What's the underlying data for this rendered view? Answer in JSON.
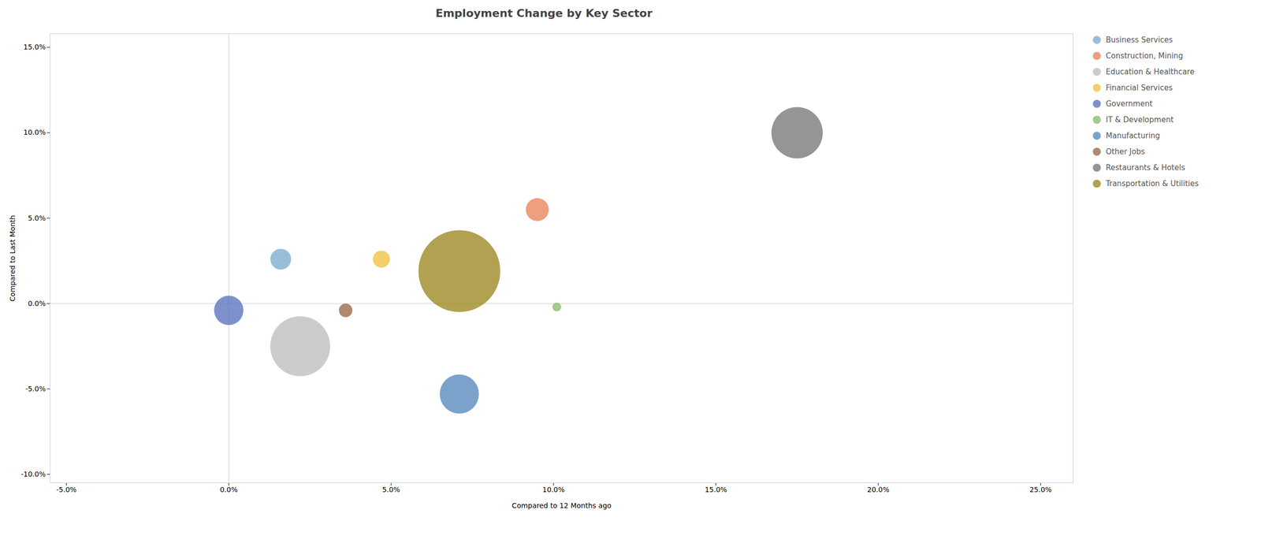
{
  "chart_data": {
    "type": "bubble",
    "title": "Employment Change by Key Sector",
    "xlabel": "Compared to 12 Months ago",
    "ylabel": "Compared to Last Month",
    "xlim": [
      -0.055,
      0.26
    ],
    "ylim": [
      -0.105,
      0.158
    ],
    "xticks": [
      {
        "value": -0.05,
        "label": "-5.0%"
      },
      {
        "value": 0.0,
        "label": "0.0%"
      },
      {
        "value": 0.05,
        "label": "5.0%"
      },
      {
        "value": 0.1,
        "label": "10.0%"
      },
      {
        "value": 0.15,
        "label": "15.0%"
      },
      {
        "value": 0.2,
        "label": "20.0%"
      },
      {
        "value": 0.25,
        "label": "25.0%"
      }
    ],
    "yticks": [
      {
        "value": -0.1,
        "label": "-10.0%"
      },
      {
        "value": -0.05,
        "label": "-5.0%"
      },
      {
        "value": 0.0,
        "label": "0.0%"
      },
      {
        "value": 0.05,
        "label": "5.0%"
      },
      {
        "value": 0.1,
        "label": "10.0%"
      },
      {
        "value": 0.15,
        "label": "15.0%"
      }
    ],
    "legend": "right",
    "series": [
      {
        "name": "Business Services",
        "x": 0.016,
        "y": 0.026,
        "size": 900,
        "color": "#7aadcf"
      },
      {
        "name": "Construction, Mining",
        "x": 0.095,
        "y": 0.055,
        "size": 1100,
        "color": "#e8845c"
      },
      {
        "name": "Education & Healthcare",
        "x": 0.022,
        "y": -0.025,
        "size": 7500,
        "color": "#bebebe"
      },
      {
        "name": "Financial Services",
        "x": 0.047,
        "y": 0.026,
        "size": 600,
        "color": "#f0c040"
      },
      {
        "name": "Government",
        "x": 0.0,
        "y": -0.004,
        "size": 1800,
        "color": "#5b72bf"
      },
      {
        "name": "IT & Development",
        "x": 0.101,
        "y": -0.002,
        "size": 160,
        "color": "#88bb66"
      },
      {
        "name": "Manufacturing",
        "x": 0.071,
        "y": -0.053,
        "size": 3200,
        "color": "#5588bb"
      },
      {
        "name": "Other Jobs",
        "x": 0.036,
        "y": -0.004,
        "size": 380,
        "color": "#996644"
      },
      {
        "name": "Restaurants & Hotels",
        "x": 0.175,
        "y": 0.1,
        "size": 5500,
        "color": "#777777"
      },
      {
        "name": "Transportation & Utilities",
        "x": 0.071,
        "y": 0.019,
        "size": 14000,
        "color": "#9b8820"
      }
    ]
  }
}
